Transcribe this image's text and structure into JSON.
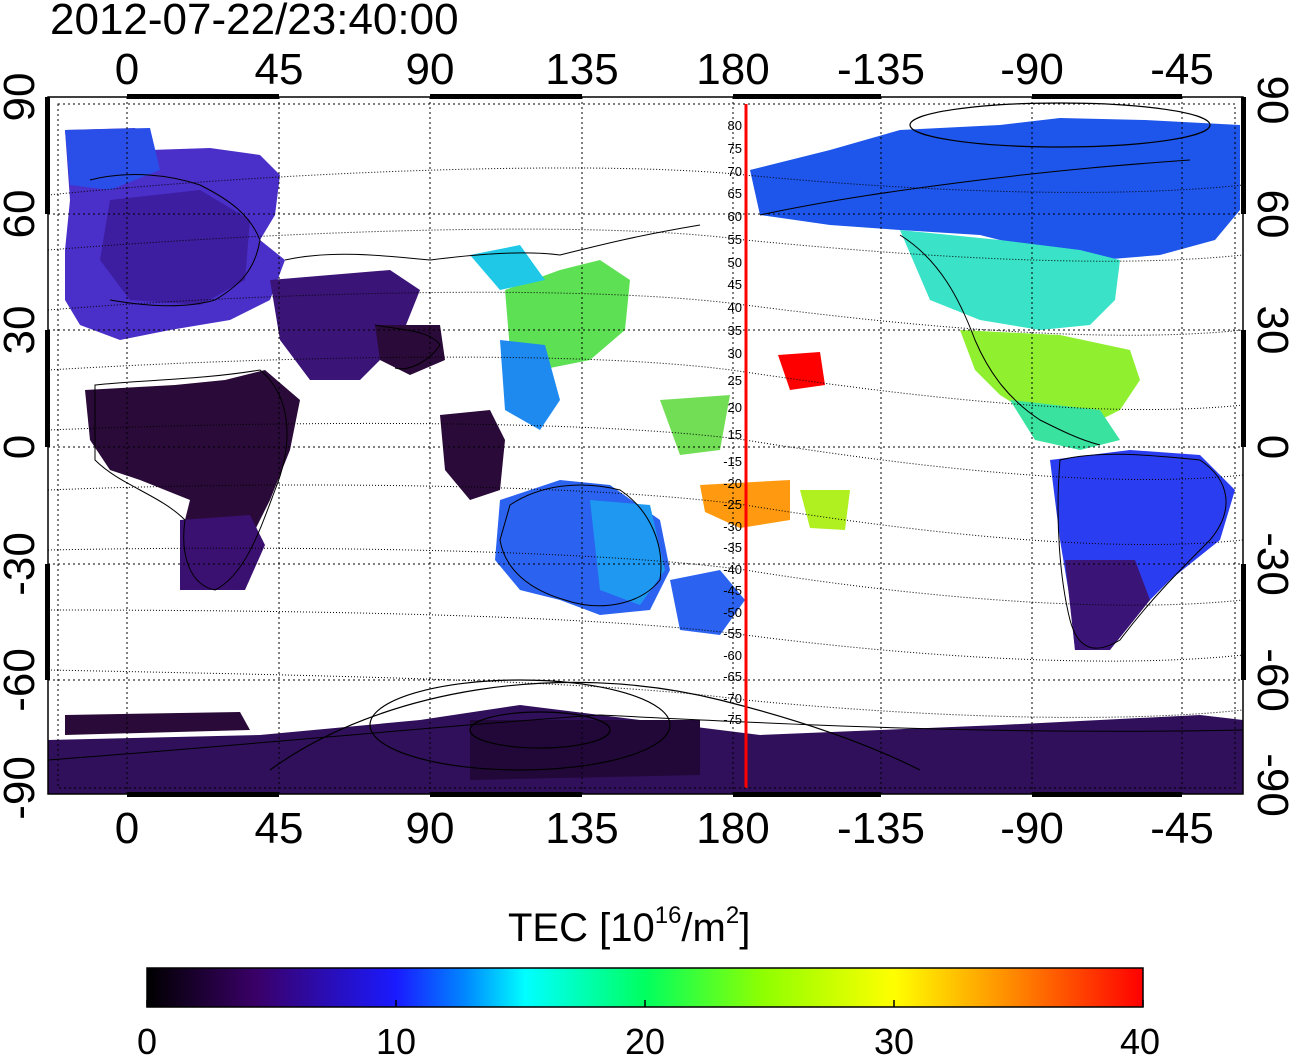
{
  "title": "2012-07-22/23:40:00",
  "map": {
    "top_lon_ticks": [
      "0",
      "45",
      "90",
      "135",
      "180",
      "-135",
      "-90",
      "-45"
    ],
    "bottom_lon_ticks": [
      "0",
      "45",
      "90",
      "135",
      "180",
      "-135",
      "-90",
      "-45"
    ],
    "left_lat_ticks": [
      "90",
      "60",
      "30",
      "0",
      "-30",
      "-60",
      "-90"
    ],
    "right_lat_ticks": [
      "90",
      "60",
      "30",
      "0",
      "-30",
      "-60",
      "-90"
    ],
    "mlat_labels": [
      "80",
      "75",
      "70",
      "65",
      "60",
      "55",
      "50",
      "45",
      "40",
      "35",
      "30",
      "25",
      "20",
      "15",
      "-15",
      "-20",
      "-25",
      "-30",
      "-35",
      "-40",
      "-45",
      "-50",
      "-55",
      "-60",
      "-65",
      "-70",
      "-75"
    ],
    "colors": {
      "highlight_meridian": "#ff0000",
      "grid": "#000000",
      "background": "#ffffff"
    }
  },
  "colorbar": {
    "title_main": "TEC  [10",
    "title_exp": "16",
    "title_mid": "/m",
    "title_exp2": "2",
    "title_end": "]",
    "ticks": [
      "0",
      "10",
      "20",
      "30",
      "40"
    ],
    "min": 0,
    "max": 40,
    "colors": [
      "#000000",
      "#3a0068",
      "#1a1aff",
      "#0088ff",
      "#00ffff",
      "#00ff60",
      "#90ff00",
      "#ffff00",
      "#ff8800",
      "#ff0000"
    ]
  }
}
